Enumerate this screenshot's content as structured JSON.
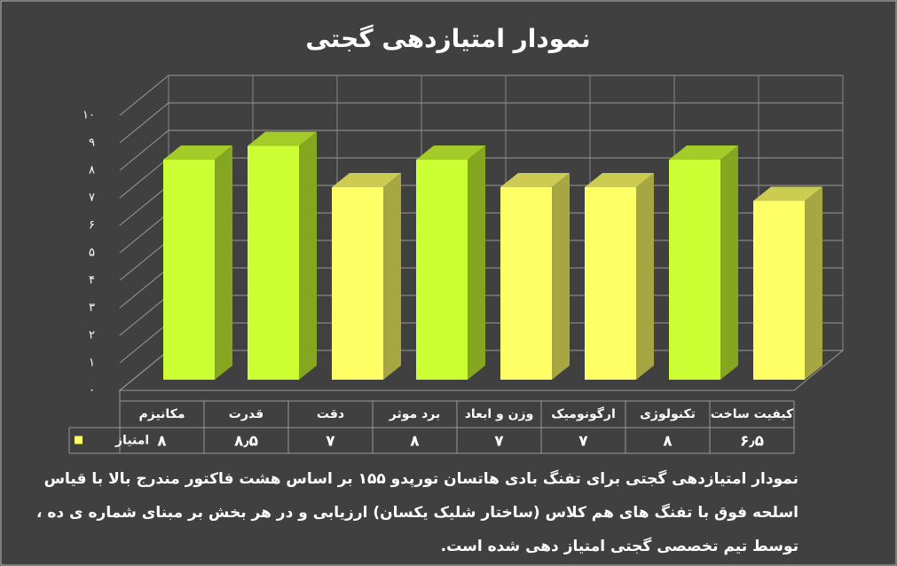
{
  "chart_data": {
    "type": "bar3d",
    "title": "نمودار امتیازدهی گجتی",
    "categories": [
      "مکانیزم",
      "قدرت",
      "دقت",
      "برد موثر",
      "وزن و ابعاد",
      "ارگونومیک",
      "تکنولوژی",
      "کیفیت ساخت"
    ],
    "series": [
      {
        "name": "امتیاز",
        "color": "#ffff66",
        "colors": [
          "#ccff33",
          "#ccff33",
          "#ffff66",
          "#ccff33",
          "#ffff66",
          "#ffff66",
          "#ccff33",
          "#ffff66"
        ],
        "values": [
          8,
          8.5,
          7,
          8,
          7,
          7,
          8,
          6.5
        ],
        "value_labels": [
          "۸",
          "۸٫۵",
          "۷",
          "۸",
          "۷",
          "۷",
          "۸",
          "۶٫۵"
        ]
      }
    ],
    "ylim": [
      0,
      10
    ],
    "yticks": [
      {
        "value": 0,
        "label": "۰"
      },
      {
        "value": 1,
        "label": "۱"
      },
      {
        "value": 2,
        "label": "۲"
      },
      {
        "value": 3,
        "label": "۳"
      },
      {
        "value": 4,
        "label": "۴"
      },
      {
        "value": 5,
        "label": "۵"
      },
      {
        "value": 6,
        "label": "۶"
      },
      {
        "value": 7,
        "label": "۷"
      },
      {
        "value": 8,
        "label": "۸"
      },
      {
        "value": 9,
        "label": "۹"
      },
      {
        "value": 10,
        "label": "۱۰"
      }
    ],
    "grid": true,
    "caption": [
      "نمودار امتیازدهی گجتی برای تفنگ بادی هاتسان تورپدو ۱۵۵ بر اساس هشت فاکتور مندرج بالا با قیاس",
      "اسلحه فوق با تفنگ های هم کلاس (ساختار شلیک یکسان) ارزیابی و در هر بخش بر مبنای شماره ی ده ،",
      "توسط تیم تخصصی گجتی امتیاز دهی شده است."
    ]
  }
}
